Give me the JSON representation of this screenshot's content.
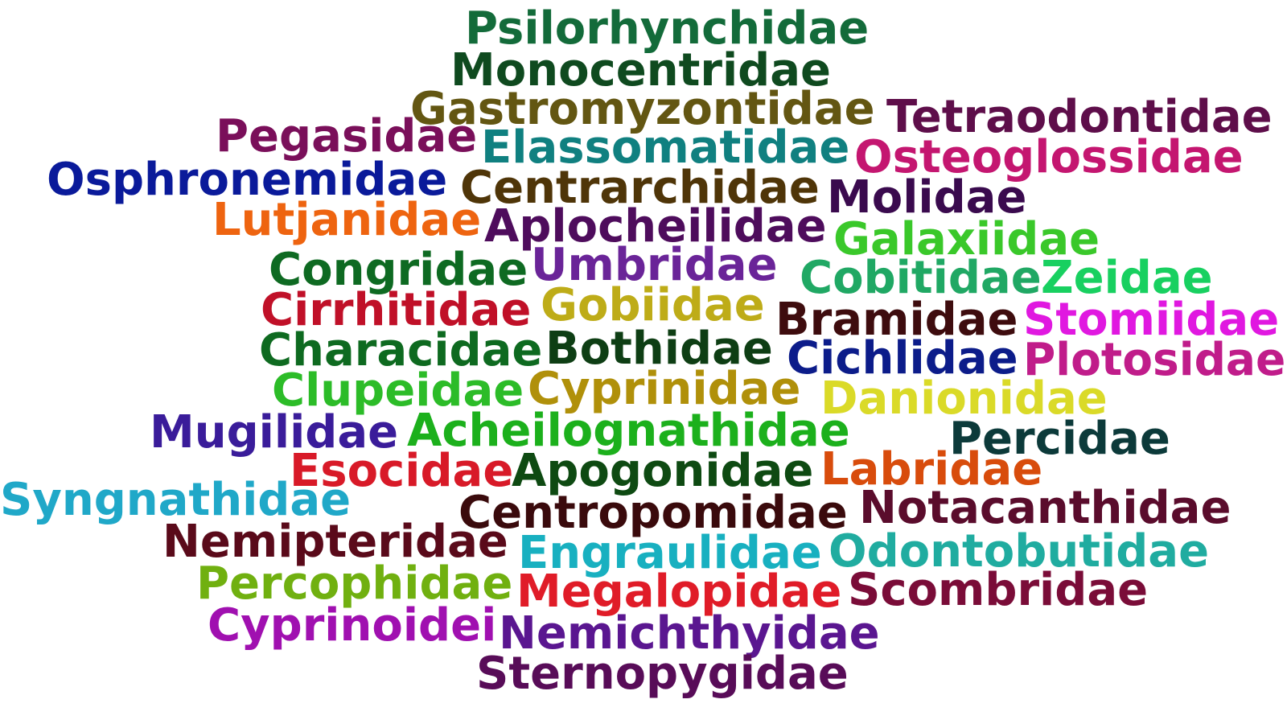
{
  "word_cloud": {
    "words": [
      {
        "text": "Psilorhynchidae",
        "color": "#136b3a"
      },
      {
        "text": "Monocentridae",
        "color": "#0f4a1f"
      },
      {
        "text": "Gastromyzontidae",
        "color": "#635612"
      },
      {
        "text": "Tetraodontidae",
        "color": "#5e0e4a"
      },
      {
        "text": "Pegasidae",
        "color": "#7a0f5a"
      },
      {
        "text": "Elassomatidae",
        "color": "#108080"
      },
      {
        "text": "Osteoglossidae",
        "color": "#c41670"
      },
      {
        "text": "Osphronemidae",
        "color": "#0a1a9a"
      },
      {
        "text": "Centrarchidae",
        "color": "#4f3508"
      },
      {
        "text": "Molidae",
        "color": "#3a0a4e"
      },
      {
        "text": "Lutjanidae",
        "color": "#ee6410"
      },
      {
        "text": "Aplocheilidae",
        "color": "#4e0c5c"
      },
      {
        "text": "Galaxiidae",
        "color": "#3ac82a"
      },
      {
        "text": "Congridae",
        "color": "#0e6a22"
      },
      {
        "text": "Umbridae",
        "color": "#6a2498"
      },
      {
        "text": "Cobitidae",
        "color": "#20a864"
      },
      {
        "text": "Zeidae",
        "color": "#18d060"
      },
      {
        "text": "Cirrhitidae",
        "color": "#c01028"
      },
      {
        "text": "Gobiidae",
        "color": "#beac18"
      },
      {
        "text": "Bramidae",
        "color": "#3e0c0e"
      },
      {
        "text": "Stomiidae",
        "color": "#e018e0"
      },
      {
        "text": "Characidae",
        "color": "#0e6a20"
      },
      {
        "text": "Bothidae",
        "color": "#0e3e14"
      },
      {
        "text": "Cichlidae",
        "color": "#0c1c8a"
      },
      {
        "text": "Plotosidae",
        "color": "#c01c8a"
      },
      {
        "text": "Clupeidae",
        "color": "#2cbc28"
      },
      {
        "text": "Cyprinidae",
        "color": "#b0900a"
      },
      {
        "text": "Danionidae",
        "color": "#dada28"
      },
      {
        "text": "Mugilidae",
        "color": "#3a1c9a"
      },
      {
        "text": "Acheilognathidae",
        "color": "#1cb01c"
      },
      {
        "text": "Percidae",
        "color": "#0c3a3a"
      },
      {
        "text": "Esocidae",
        "color": "#d81a28"
      },
      {
        "text": "Apogonidae",
        "color": "#0e4a12"
      },
      {
        "text": "Labridae",
        "color": "#d84c0c"
      },
      {
        "text": "Syngnathidae",
        "color": "#20a8c8"
      },
      {
        "text": "Centropomidae",
        "color": "#3a0a0c"
      },
      {
        "text": "Notacanthidae",
        "color": "#5a0c2c"
      },
      {
        "text": "Nemipteridae",
        "color": "#5a0a1a"
      },
      {
        "text": "Engraulidae",
        "color": "#18b0c0"
      },
      {
        "text": "Odontobutidae",
        "color": "#20aca0"
      },
      {
        "text": "Percophidae",
        "color": "#70b010"
      },
      {
        "text": "Megalopidae",
        "color": "#e01c28"
      },
      {
        "text": "Scombridae",
        "color": "#7a0c38"
      },
      {
        "text": "Cyprinoidei",
        "color": "#a010b0"
      },
      {
        "text": "Nemichthyidae",
        "color": "#5a1690"
      },
      {
        "text": "Sternopygidae",
        "color": "#580c58"
      }
    ]
  }
}
